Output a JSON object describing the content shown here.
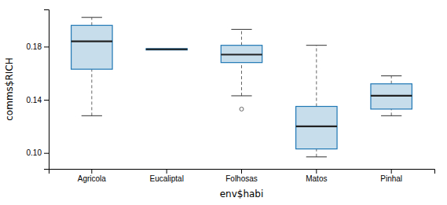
{
  "chart_data": {
    "type": "box",
    "xlabel": "env$habi",
    "ylabel": "comms$RICH",
    "categories": [
      "Agricola",
      "Eucaliptal",
      "Folhosas",
      "Matos",
      "Pinhal"
    ],
    "boxes": [
      {
        "q1": 0.163,
        "median": 0.184,
        "q3": 0.196,
        "whislo": 0.128,
        "whishi": 0.202,
        "fliers": []
      },
      {
        "q1": 0.1775,
        "median": 0.178,
        "q3": 0.1785,
        "whislo": 0.178,
        "whishi": 0.178,
        "fliers": []
      },
      {
        "q1": 0.168,
        "median": 0.174,
        "q3": 0.181,
        "whislo": 0.143,
        "whishi": 0.193,
        "fliers": [
          0.133
        ]
      },
      {
        "q1": 0.103,
        "median": 0.12,
        "q3": 0.135,
        "whislo": 0.097,
        "whishi": 0.181,
        "fliers": []
      },
      {
        "q1": 0.133,
        "median": 0.143,
        "q3": 0.152,
        "whislo": 0.128,
        "whishi": 0.158,
        "fliers": []
      }
    ],
    "ylim": [
      0.088,
      0.208
    ],
    "yticks": [
      {
        "value": 0.1,
        "label": "0.10"
      },
      0.14,
      0.18
    ]
  }
}
